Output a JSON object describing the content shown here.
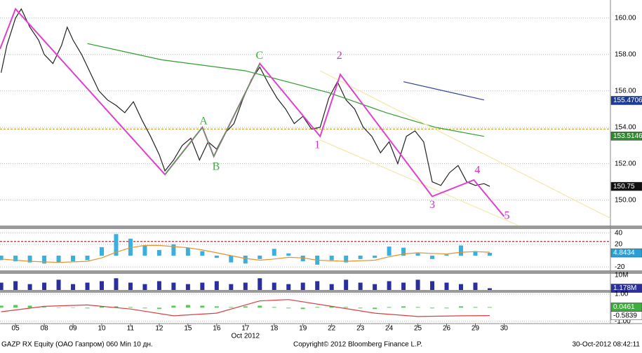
{
  "chart_data": [
    {
      "type": "line",
      "xlim": [
        -0.54,
        20.7
      ],
      "ylim": [
        148.6,
        160.8
      ],
      "yticks": [
        {
          "value": 150,
          "label": "150.00"
        },
        {
          "value": 152,
          "label": "152.00"
        },
        {
          "value": 154,
          "label": "154.00"
        },
        {
          "value": 156,
          "label": "156.00"
        },
        {
          "value": 158,
          "label": "158.00"
        },
        {
          "value": 160,
          "label": "160.00"
        }
      ],
      "grid": true,
      "hlines": [
        {
          "value": 153.9,
          "color": "#d9a21b"
        }
      ],
      "series": [
        {
          "type": "line",
          "color": "#222222",
          "x": [
            -0.5,
            -0.3,
            0,
            0.2,
            0.5,
            0.8,
            1.0,
            1.3,
            1.6,
            1.8,
            2.0,
            2.3,
            2.6,
            2.9,
            3.2,
            3.5,
            3.8,
            4.1,
            4.4,
            4.7,
            5.0,
            5.2,
            5.5,
            5.8,
            6.1,
            6.4,
            6.7,
            7.0,
            7.3,
            7.6,
            7.9,
            8.2,
            8.5,
            8.8,
            9.1,
            9.4,
            9.7,
            10.0,
            10.3,
            10.6,
            10.9,
            11.2,
            11.5,
            11.8,
            12.1,
            12.4,
            12.7,
            13.0,
            13.3,
            13.6,
            13.9,
            14.2,
            14.5,
            14.8,
            15.1,
            15.4,
            15.7,
            16.0,
            16.3,
            16.5
          ],
          "values": [
            157.0,
            158.5,
            160.0,
            160.5,
            159.5,
            158.8,
            158.0,
            157.5,
            158.5,
            159.5,
            158.8,
            158.0,
            157.0,
            156.0,
            155.5,
            155.2,
            154.8,
            155.4,
            154.4,
            153.5,
            152.5,
            151.6,
            152.2,
            153.0,
            153.4,
            152.2,
            153.2,
            152.8,
            153.7,
            154.2,
            155.5,
            156.6,
            157.3,
            156.4,
            155.6,
            155.0,
            154.2,
            154.6,
            153.9,
            154.0,
            155.6,
            156.5,
            155.5,
            155.0,
            154.0,
            153.5,
            152.6,
            153.2,
            152.0,
            153.5,
            153.8,
            153.2,
            151.0,
            150.8,
            151.5,
            151.9,
            151.0,
            150.8,
            150.9,
            150.75
          ]
        },
        {
          "type": "line",
          "color": "#2e9e2e",
          "x": [
            2.5,
            5.1,
            8,
            10.9,
            12.9,
            14.6,
            16.3
          ],
          "values": [
            158.6,
            157.7,
            157.1,
            155.9,
            154.8,
            154.0,
            153.5
          ]
        },
        {
          "type": "line",
          "color": "#2b3f9e",
          "x": [
            13.5,
            16.3
          ],
          "values": [
            156.5,
            155.5
          ]
        },
        {
          "type": "line",
          "color": "#f3e7a8",
          "x": [
            10.6,
            20.7
          ],
          "values": [
            157.1,
            149.0
          ]
        },
        {
          "type": "line",
          "color": "#f3e7a8",
          "x": [
            10.6,
            17.5
          ],
          "values": [
            153.3,
            148.6
          ]
        },
        {
          "type": "line",
          "color": "#e040d0",
          "x": [
            -0.54,
            0,
            5.2,
            6.5,
            6.9,
            8.5,
            10.6,
            11.3,
            14.5,
            15.95,
            17
          ],
          "values": [
            158.3,
            160.5,
            151.4,
            154.0,
            152.4,
            157.5,
            153.5,
            156.9,
            150.2,
            151.1,
            149.1
          ]
        },
        {
          "type": "line",
          "color": "#3fae3f",
          "x": [
            5.2,
            6.5,
            6.9,
            8.5
          ],
          "values": [
            151.4,
            154.0,
            152.4,
            157.5
          ]
        }
      ],
      "axis_labels": [
        {
          "value": 155.4706,
          "color": "#1f3a93"
        },
        {
          "value": 153.5146,
          "color": "#2e8b2e"
        },
        {
          "value": 150.75,
          "color": "#111111"
        }
      ],
      "annotations": [
        {
          "text": "A",
          "x": 6.54,
          "y": 154.3,
          "color": "#3fae3f"
        },
        {
          "text": "B",
          "x": 6.98,
          "y": 151.8,
          "color": "#3fae3f"
        },
        {
          "text": "C",
          "x": 8.49,
          "y": 157.9,
          "color": "#3fae3f"
        },
        {
          "text": "1",
          "x": 10.5,
          "y": 153.0,
          "color": "#d030c0"
        },
        {
          "text": "2",
          "x": 11.27,
          "y": 157.9,
          "color": "#d030c0"
        },
        {
          "text": "3",
          "x": 14.5,
          "y": 149.7,
          "color": "#d030c0"
        },
        {
          "text": "4",
          "x": 16.07,
          "y": 151.6,
          "color": "#d030c0"
        },
        {
          "text": "5",
          "x": 17.1,
          "y": 149.1,
          "color": "#d030c0"
        }
      ]
    },
    {
      "type": "bar",
      "xlim": [
        -0.54,
        20.7
      ],
      "ylim": [
        -26,
        47
      ],
      "yticks": [
        -20,
        20,
        40
      ],
      "grid": true,
      "hlines": [
        {
          "value": 25,
          "color": "#b03030"
        }
      ],
      "series": [
        {
          "type": "bar",
          "color": "#3ab0e0",
          "x": [
            -0.5,
            0,
            0.5,
            1,
            1.5,
            2,
            2.5,
            3,
            3.5,
            4,
            4.5,
            5,
            5.5,
            6,
            6.5,
            7,
            7.5,
            8,
            8.5,
            9,
            9.5,
            10,
            10.5,
            11,
            11.5,
            12,
            12.5,
            13,
            13.5,
            14,
            14.5,
            15,
            15.5,
            16,
            16.5
          ],
          "values": [
            -8,
            -10,
            -12,
            -14,
            -12,
            -10,
            -8,
            15,
            38,
            30,
            18,
            10,
            20,
            14,
            8,
            -4,
            -12,
            -14,
            -6,
            12,
            4,
            -10,
            -16,
            -8,
            -12,
            -6,
            -4,
            16,
            14,
            4,
            -6,
            2,
            18,
            8,
            5
          ]
        },
        {
          "type": "line",
          "color": "#e8902a",
          "x": [
            -0.5,
            0,
            0.5,
            1,
            1.5,
            2,
            2.5,
            3,
            3.5,
            4,
            4.5,
            5,
            5.5,
            6,
            6.5,
            7,
            7.5,
            8,
            8.5,
            9,
            9.5,
            10,
            10.5,
            11,
            11.5,
            12,
            12.5,
            13,
            13.5,
            14,
            14.5,
            15,
            15.5,
            16,
            16.5
          ],
          "values": [
            -6,
            -8,
            -10,
            -11,
            -12,
            -11,
            -10,
            -4,
            6,
            14,
            18,
            18,
            16,
            14,
            10,
            5,
            0,
            -5,
            -8,
            -6,
            -3,
            -4,
            -8,
            -9,
            -10,
            -9,
            -8,
            -2,
            3,
            5,
            4,
            3,
            6,
            7,
            6
          ]
        }
      ],
      "axis_labels": [
        {
          "value": 4.8434,
          "color": "#2a9fd6"
        }
      ]
    },
    {
      "type": "bar",
      "xlim": [
        -0.54,
        20.7
      ],
      "ylim": [
        0,
        11
      ],
      "yticks": [
        {
          "value": 10,
          "label": "10M"
        }
      ],
      "grid": false,
      "series": [
        {
          "type": "bar",
          "color": "#2b2f9e",
          "x": [
            -0.5,
            0,
            0.5,
            1,
            1.5,
            2,
            2.5,
            3,
            3.5,
            4,
            4.5,
            5,
            5.5,
            6,
            6.5,
            7,
            7.5,
            8,
            8.5,
            9,
            9.5,
            10,
            10.5,
            11,
            11.5,
            12,
            12.5,
            13,
            13.5,
            14,
            14.5,
            15,
            15.5,
            16,
            16.5
          ],
          "values": [
            5,
            6,
            4,
            5,
            7,
            4,
            5,
            6,
            8,
            5,
            4,
            6,
            5,
            4,
            5,
            6,
            4,
            5,
            8,
            5,
            4,
            5,
            6,
            4,
            7,
            5,
            4,
            6,
            5,
            7,
            6,
            5,
            4,
            5,
            1.178
          ]
        }
      ],
      "axis_labels": [
        {
          "value": 1.178,
          "label": "1.178M",
          "color": "#2b2f9e"
        }
      ]
    },
    {
      "type": "bar",
      "xlim": [
        -0.54,
        20.7
      ],
      "ylim": [
        -1.12,
        1.1
      ],
      "yticks": [
        {
          "value": -1,
          "label": "-1.00"
        },
        {
          "value": 1,
          "label": "1.00"
        }
      ],
      "grid": true,
      "series": [
        {
          "type": "bar",
          "color": "#5ac85a",
          "x": [
            -0.5,
            0,
            0.5,
            1,
            1.5,
            2,
            2.5,
            3,
            3.5,
            4,
            4.5,
            5,
            5.5,
            6,
            6.5,
            7,
            7.5,
            8,
            8.5,
            9,
            9.5,
            10,
            10.5,
            11,
            11.5,
            12,
            12.5,
            13,
            13.5,
            14,
            14.5,
            15,
            15.5,
            16,
            16.5
          ],
          "values": [
            0.15,
            0.2,
            0.15,
            0.05,
            0,
            0,
            -0.05,
            0.1,
            0.1,
            0.05,
            -0.05,
            -0.1,
            0.15,
            0.2,
            0.15,
            0.1,
            0.05,
            0.1,
            0.15,
            0.05,
            -0.05,
            -0.1,
            0.05,
            0.1,
            0.05,
            -0.05,
            -0.1,
            0.05,
            0.1,
            0.05,
            -0.05,
            -0.05,
            0.1,
            0.05,
            0.0461
          ]
        },
        {
          "type": "line",
          "color": "#d84040",
          "x": [
            -0.5,
            1,
            2.5,
            4,
            5.5,
            7,
            8.5,
            9.5,
            11,
            12.5,
            14,
            15.5,
            16.5
          ],
          "values": [
            -0.3,
            0.1,
            0.2,
            -0.1,
            -0.6,
            -0.4,
            0.5,
            0.6,
            0.1,
            -0.4,
            -0.65,
            -0.6,
            -0.5839
          ]
        }
      ],
      "axis_labels": [
        {
          "value": 0.0461,
          "color": "#3ab03a"
        },
        {
          "value": -0.5839,
          "color": "#ffffff"
        }
      ],
      "xticks": [
        {
          "value": 0,
          "label": "05"
        },
        {
          "value": 1,
          "label": "08"
        },
        {
          "value": 2,
          "label": "09"
        },
        {
          "value": 3,
          "label": "10"
        },
        {
          "value": 4,
          "label": "11"
        },
        {
          "value": 5,
          "label": "12"
        },
        {
          "value": 6,
          "label": "15"
        },
        {
          "value": 7,
          "label": "16"
        },
        {
          "value": 8,
          "label": "17"
        },
        {
          "value": 9,
          "label": "18"
        },
        {
          "value": 10,
          "label": "19"
        },
        {
          "value": 11,
          "label": "22"
        },
        {
          "value": 12,
          "label": "23"
        },
        {
          "value": 13,
          "label": "24"
        },
        {
          "value": 14,
          "label": "25"
        },
        {
          "value": 15,
          "label": "26"
        },
        {
          "value": 16,
          "label": "29"
        },
        {
          "value": 17,
          "label": "30"
        }
      ],
      "x_label": "Oct 2012"
    }
  ],
  "footer": {
    "left": "GAZP RX Equity (ОАО Газпром) 060 Min 10 дн.",
    "center": "Copyright© 2012 Bloomberg Finance L.P.",
    "right": "30-Oct-2012 08:42:11"
  }
}
